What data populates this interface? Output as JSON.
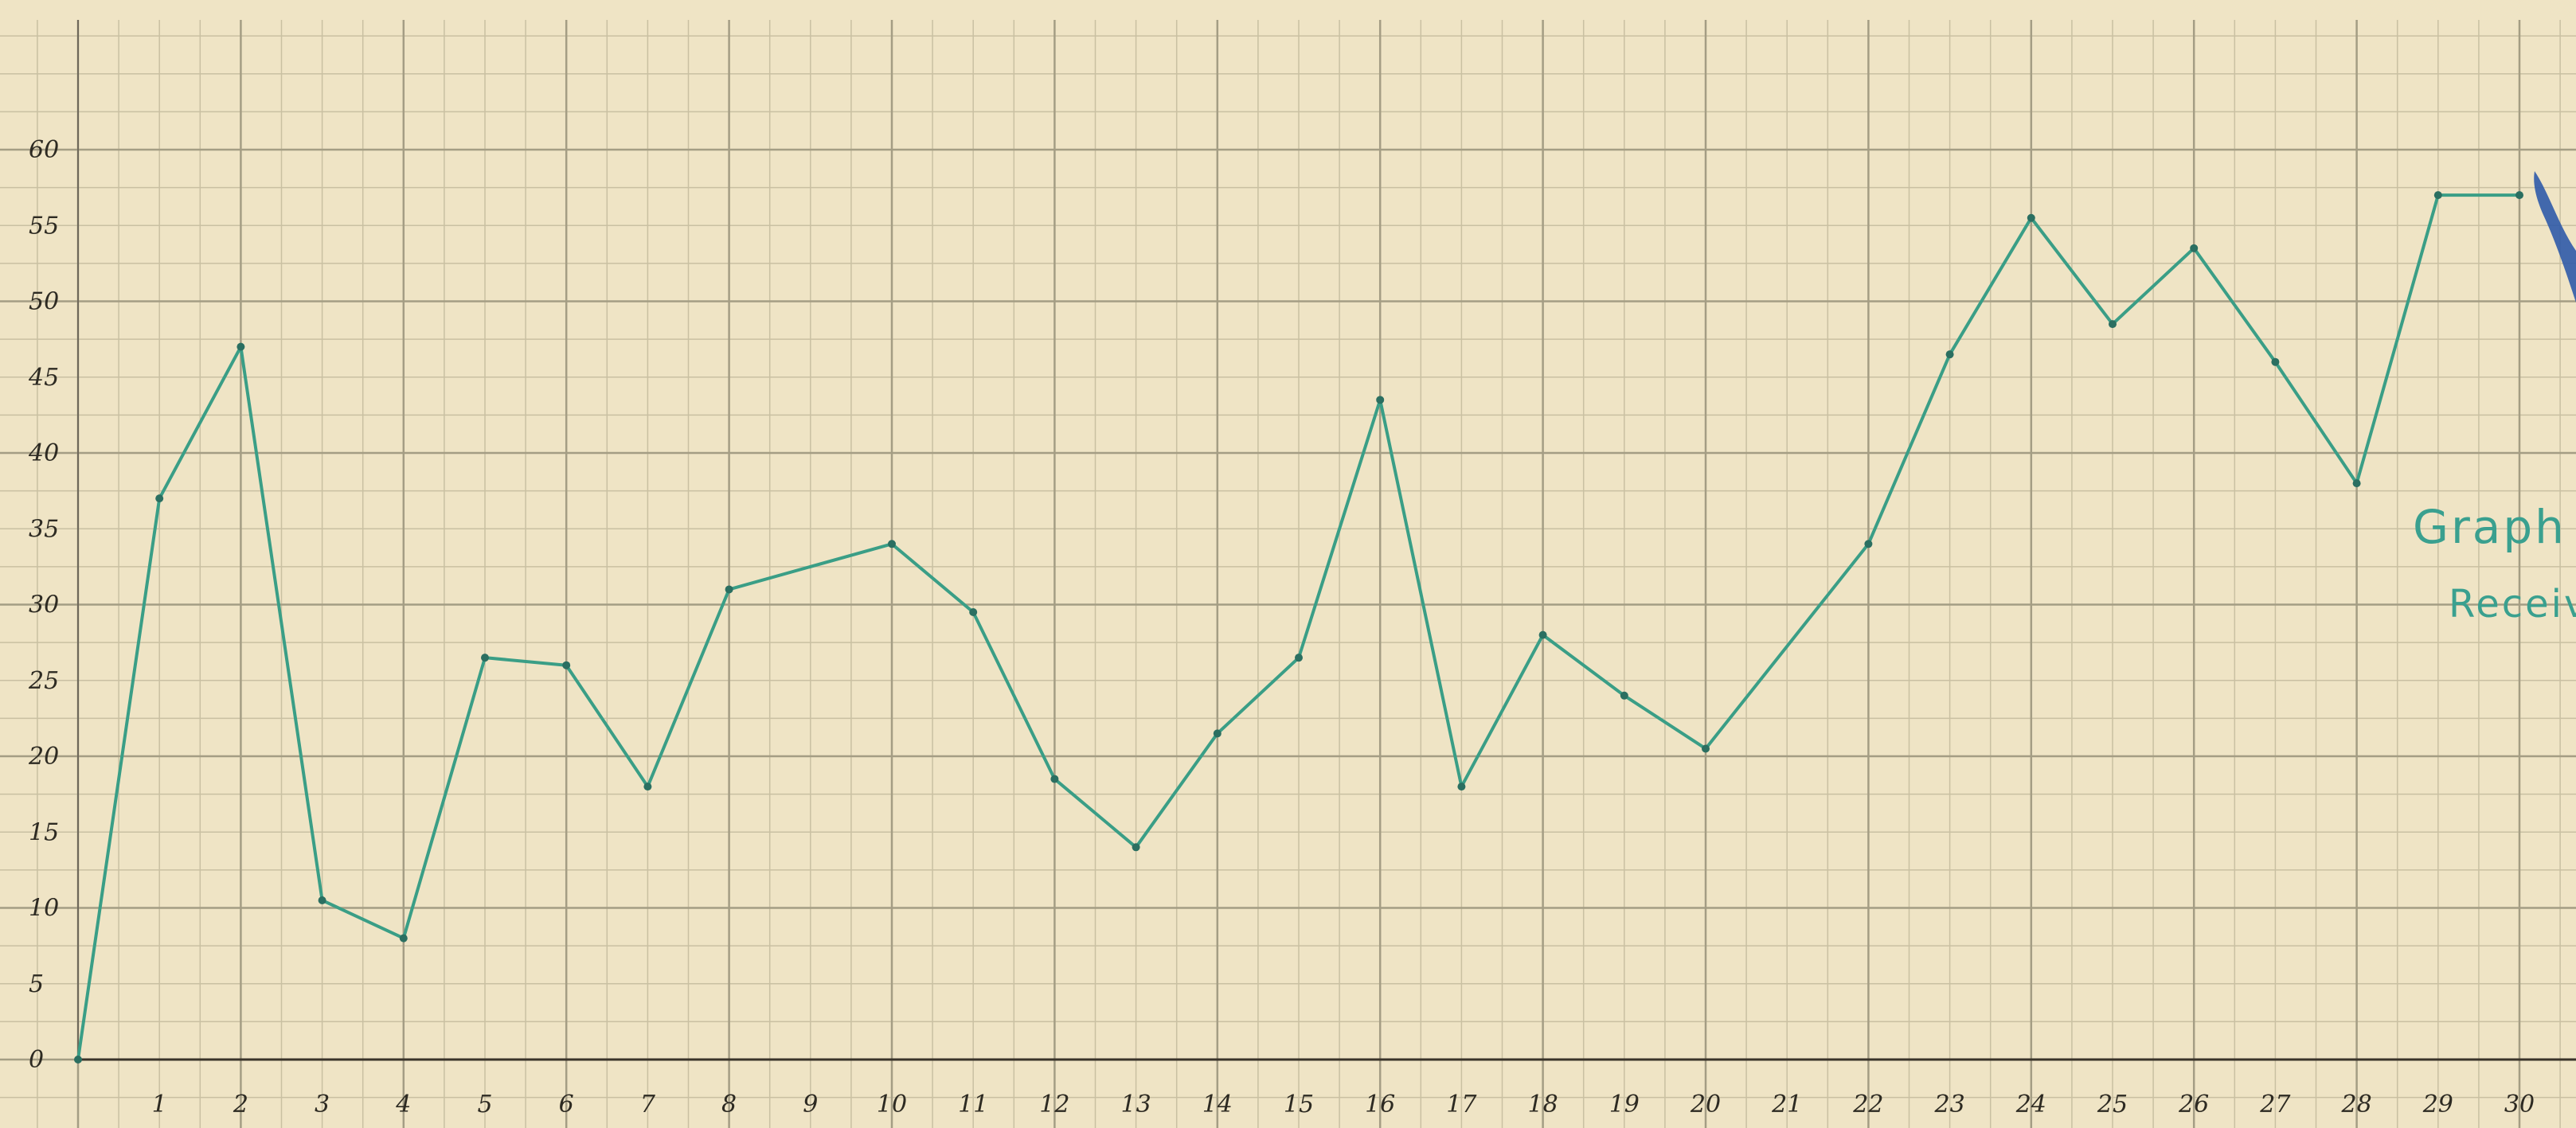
{
  "chart_data": {
    "type": "line",
    "title_fragments": [
      "Graph",
      "Receiv"
    ],
    "xlabel": "",
    "ylabel": "",
    "xlim": [
      0,
      30
    ],
    "ylim": [
      0,
      60
    ],
    "grid": true,
    "x_tick_labels": [
      "1",
      "2",
      "3",
      "4",
      "5",
      "6",
      "7",
      "8",
      "9",
      "10",
      "11",
      "12",
      "13",
      "14",
      "15",
      "16",
      "17",
      "18",
      "19",
      "20",
      "21",
      "22",
      "23",
      "24",
      "25",
      "26",
      "27",
      "28",
      "29",
      "30"
    ],
    "y_tick_labels": [
      "0",
      "5",
      "10",
      "15",
      "20",
      "25",
      "30",
      "35",
      "40",
      "45",
      "50",
      "55",
      "60"
    ],
    "series": [
      {
        "x": [
          0,
          1,
          2,
          3,
          4,
          5,
          6,
          7,
          8,
          10,
          11,
          12,
          13,
          14,
          15,
          16,
          17,
          18,
          19,
          20,
          22,
          23,
          24,
          25,
          26,
          27,
          28,
          29,
          30
        ],
        "y": [
          0,
          37,
          47,
          10.5,
          8,
          26.5,
          26,
          18,
          31,
          34,
          29.5,
          18.5,
          14,
          21.5,
          26.5,
          43.5,
          18,
          28,
          24,
          20.5,
          34,
          46.5,
          55.5,
          48.5,
          53.5,
          46,
          38,
          57,
          57
        ],
        "color": "#3a9e86"
      }
    ]
  },
  "colors": {
    "paper": "#efe4c5",
    "grid_minor": "#c9c0a2",
    "grid_major": "#a49d84",
    "line": "#3a9e86",
    "ink_blot": "#2f5aa8"
  }
}
